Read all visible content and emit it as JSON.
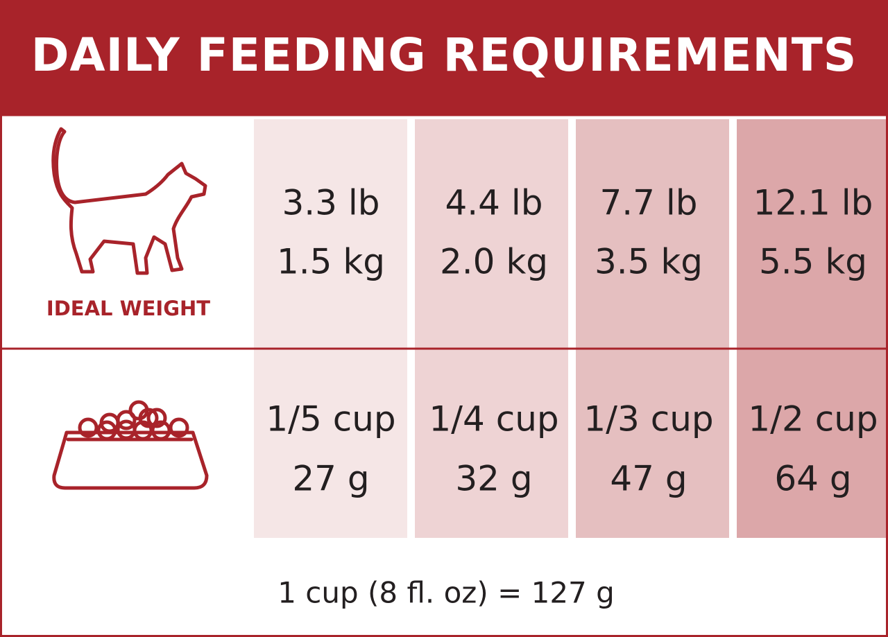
{
  "header": {
    "title": "DAILY FEEDING REQUIREMENTS"
  },
  "weight_label": "IDEAL WEIGHT",
  "columns": [
    {
      "weight_lb": "3.3 lb",
      "weight_kg": "1.5 kg",
      "cups": "1/5 cup",
      "grams": "27 g"
    },
    {
      "weight_lb": "4.4 lb",
      "weight_kg": "2.0 kg",
      "cups": "1/4 cup",
      "grams": "32 g"
    },
    {
      "weight_lb": "7.7 lb",
      "weight_kg": "3.5 kg",
      "cups": "1/3 cup",
      "grams": "47 g"
    },
    {
      "weight_lb": "12.1 lb",
      "weight_kg": "5.5 kg",
      "cups": "1/2 cup",
      "grams": "64 g"
    }
  ],
  "footnote": "1 cup (8 fl. oz) = 127 g"
}
